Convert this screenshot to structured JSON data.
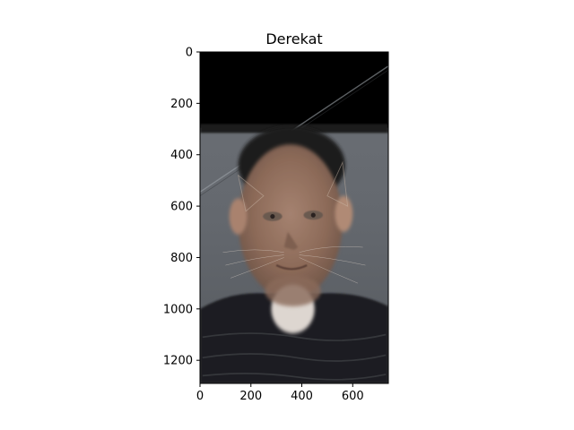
{
  "chart_data": {
    "type": "image",
    "title": "Derekat",
    "xlabel": "",
    "ylabel": "",
    "image_width": 740,
    "image_height": 1290,
    "xlim": [
      0,
      740
    ],
    "ylim": [
      1290,
      0
    ],
    "x_ticks": [
      0,
      200,
      400,
      600
    ],
    "y_ticks": [
      0,
      200,
      400,
      600,
      800,
      1000,
      1200
    ],
    "grid": false,
    "legend": "none"
  },
  "image_content": {
    "description": "hybrid image of a man's face blended with a cat face",
    "colors": {
      "black_band": "#000000",
      "background_gray": "#6a6e74",
      "skin": "#9a7561",
      "shirt": "#1c1d20",
      "neck_highlight": "#ddd6d0"
    }
  }
}
